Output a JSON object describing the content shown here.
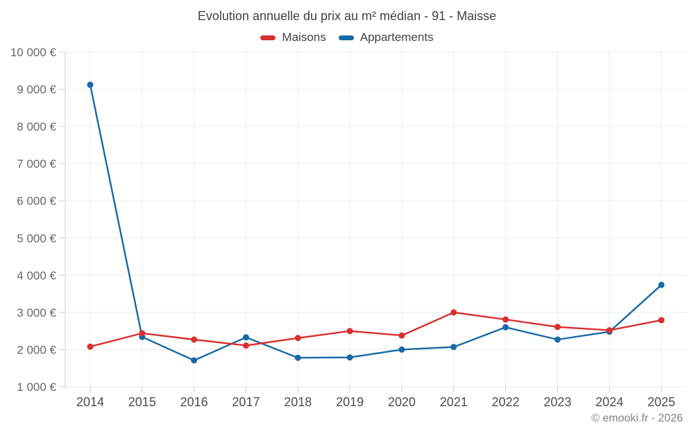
{
  "footer": {
    "copyright": "© emooki.fr - 2026"
  },
  "chart_data": {
    "type": "line",
    "title": "Evolution annuelle du prix au m² médian - 91 - Maisse",
    "categories": [
      "2014",
      "2015",
      "2016",
      "2017",
      "2018",
      "2019",
      "2020",
      "2021",
      "2022",
      "2023",
      "2024",
      "2025"
    ],
    "series": [
      {
        "name": "Maisons",
        "color": "#d7302f",
        "values": [
          2080,
          2440,
          2270,
          2110,
          2310,
          2500,
          2380,
          3000,
          2810,
          2610,
          2520,
          2790
        ]
      },
      {
        "name": "Appartements",
        "color": "#1769a5",
        "values": [
          9120,
          2340,
          1710,
          2330,
          1780,
          1790,
          2000,
          2070,
          2600,
          2270,
          2480,
          3740
        ]
      }
    ],
    "ylim": [
      1000,
      10000
    ],
    "y_ticks": [
      {
        "value": 1000,
        "label": "1 000 €"
      },
      {
        "value": 2000,
        "label": "2 000 €"
      },
      {
        "value": 3000,
        "label": "3 000 €"
      },
      {
        "value": 4000,
        "label": "4 000 €"
      },
      {
        "value": 5000,
        "label": "5 000 €"
      },
      {
        "value": 6000,
        "label": "6 000 €"
      },
      {
        "value": 7000,
        "label": "7 000 €"
      },
      {
        "value": 8000,
        "label": "8 000 €"
      },
      {
        "value": 9000,
        "label": "9 000 €"
      },
      {
        "value": 10000,
        "label": "10 000 €"
      }
    ],
    "grid": true,
    "legend_position": "top",
    "colors": {
      "grid": "#ebebeb",
      "axis": "#cccccc",
      "y_label": "#666666",
      "x_label": "#4d4d4d"
    }
  }
}
